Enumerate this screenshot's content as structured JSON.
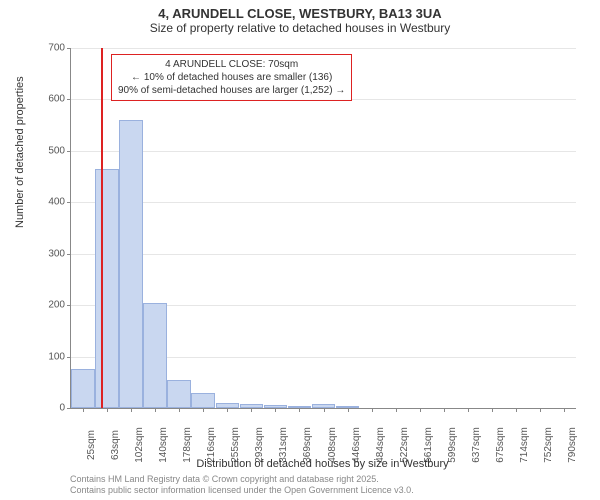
{
  "title": "4, ARUNDELL CLOSE, WESTBURY, BA13 3UA",
  "subtitle": "Size of property relative to detached houses in Westbury",
  "chart": {
    "type": "histogram",
    "ylabel": "Number of detached properties",
    "xlabel": "Distribution of detached houses by size in Westbury",
    "ylim": [
      0,
      700
    ],
    "ytick_step": 100,
    "bar_fill": "#c9d7f0",
    "bar_border": "#9ab1de",
    "grid_color": "#e6e6e6",
    "axis_color": "#888",
    "background_color": "#ffffff",
    "x_categories": [
      "25sqm",
      "63sqm",
      "102sqm",
      "140sqm",
      "178sqm",
      "216sqm",
      "255sqm",
      "293sqm",
      "331sqm",
      "369sqm",
      "408sqm",
      "446sqm",
      "484sqm",
      "522sqm",
      "561sqm",
      "599sqm",
      "637sqm",
      "675sqm",
      "714sqm",
      "752sqm",
      "790sqm"
    ],
    "values": [
      75,
      465,
      560,
      205,
      55,
      30,
      10,
      8,
      5,
      4,
      8,
      4,
      0,
      0,
      0,
      0,
      0,
      0,
      0,
      0,
      0
    ],
    "marker": {
      "position_index": 1.25,
      "color": "#d22",
      "box_lines": [
        "4 ARUNDELL CLOSE: 70sqm",
        "← 10% of detached houses are smaller (136)",
        "90% of semi-detached houses are larger (1,252) →"
      ]
    }
  },
  "footer_line1": "Contains HM Land Registry data © Crown copyright and database right 2025.",
  "footer_line2": "Contains public sector information licensed under the Open Government Licence v3.0."
}
